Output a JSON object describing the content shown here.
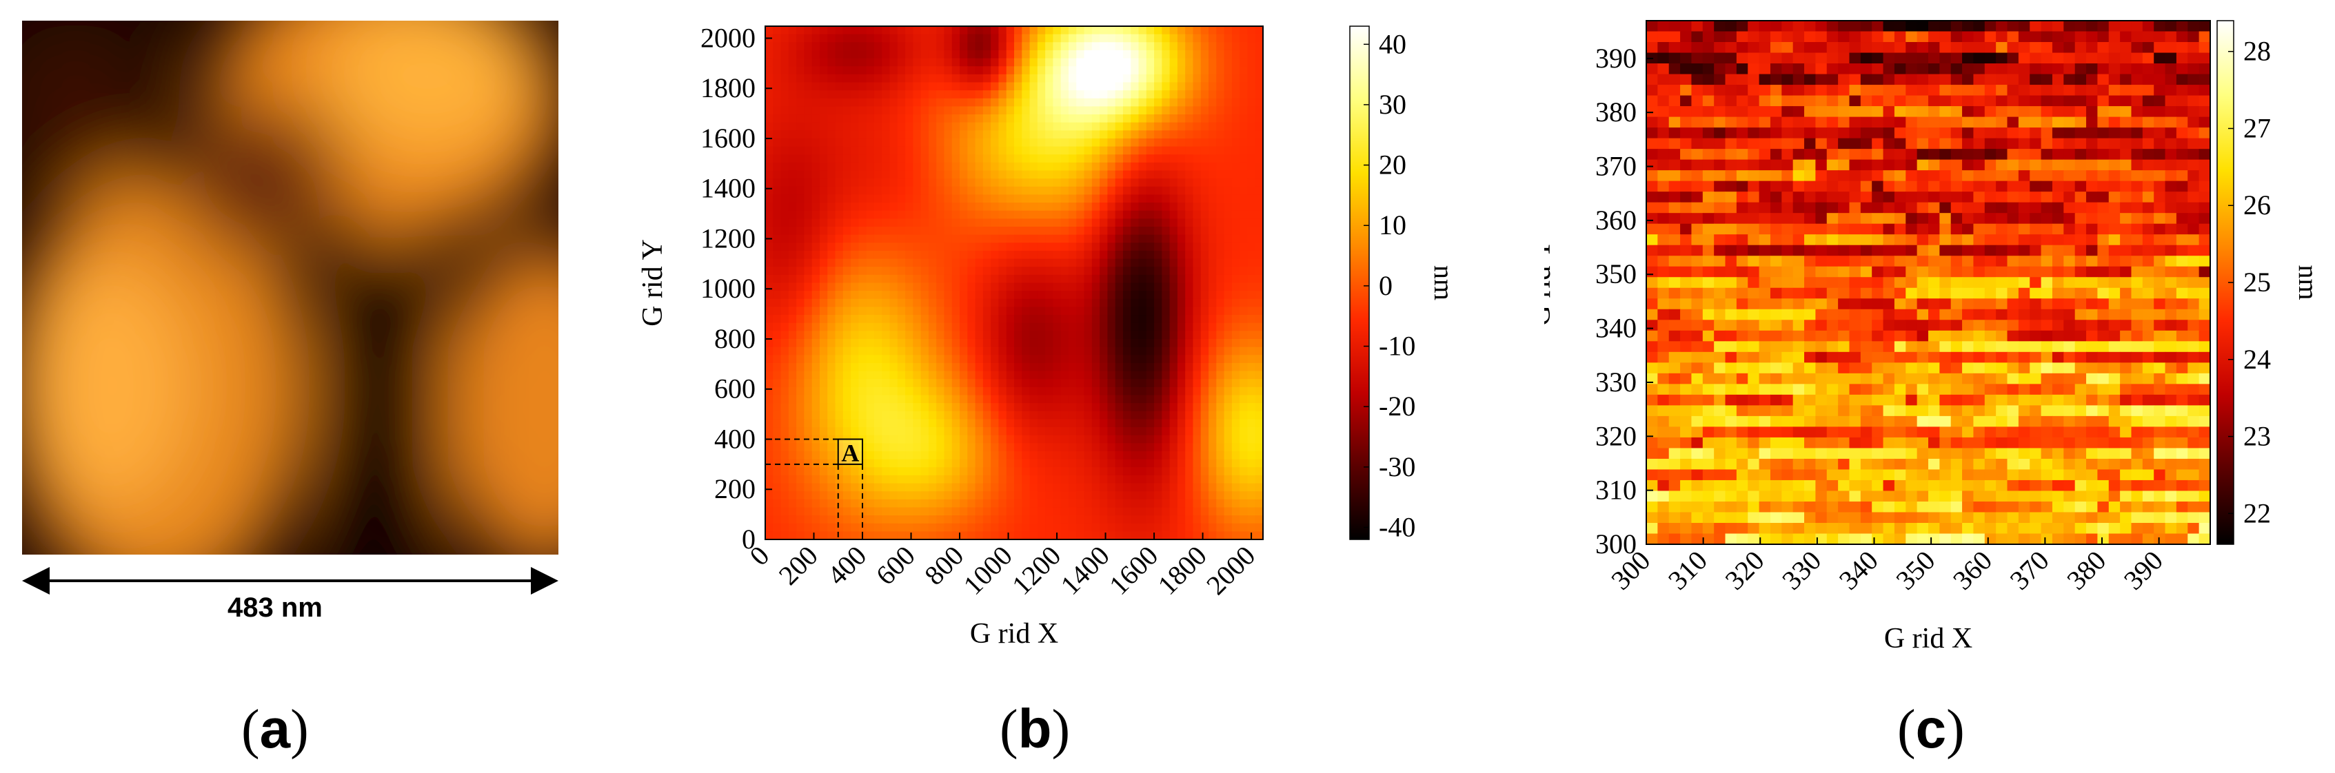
{
  "panels": {
    "a": {
      "label_letter": "a",
      "scale_bar_text": "483 nm"
    },
    "b": {
      "label_letter": "b",
      "region_label": "A"
    },
    "c": {
      "label_letter": "c"
    }
  },
  "chart_data": [
    {
      "type": "heatmap",
      "panel": "b",
      "xlabel": "G rid X",
      "ylabel": "G rid Y",
      "colorbar_label": "nm",
      "xlim": [
        0,
        2048
      ],
      "ylim": [
        0,
        2048
      ],
      "x_ticks": [
        0,
        200,
        400,
        600,
        800,
        1000,
        1200,
        1400,
        1600,
        1800,
        2000
      ],
      "y_ticks": [
        0,
        200,
        400,
        600,
        800,
        1000,
        1200,
        1400,
        1600,
        1800,
        2000
      ],
      "colorbar_range": [
        -42,
        43
      ],
      "colorbar_ticks": [
        -40,
        -30,
        -20,
        -10,
        0,
        10,
        20,
        30,
        40
      ],
      "colormap": [
        "#000000",
        "#5a0000",
        "#c00000",
        "#ff2a00",
        "#ff8a00",
        "#ffe000",
        "#ffff80",
        "#ffffff"
      ],
      "selected_region": {
        "x": [
          300,
          400
        ],
        "y": [
          300,
          400
        ]
      },
      "features": [
        {
          "x": 1430,
          "y": 1900,
          "value": 40,
          "sx": 300,
          "sy": 250
        },
        {
          "x": 1150,
          "y": 1600,
          "value": 20,
          "sx": 420,
          "sy": 380
        },
        {
          "x": 400,
          "y": 650,
          "value": 18,
          "sx": 320,
          "sy": 520
        },
        {
          "x": 700,
          "y": 350,
          "value": 12,
          "sx": 300,
          "sy": 300
        },
        {
          "x": 2000,
          "y": 420,
          "value": 20,
          "sx": 230,
          "sy": 380
        },
        {
          "x": 450,
          "y": 1450,
          "value": -12,
          "sx": 300,
          "sy": 350
        },
        {
          "x": 380,
          "y": 1950,
          "value": -20,
          "sx": 280,
          "sy": 180
        },
        {
          "x": 1550,
          "y": 900,
          "value": -38,
          "sx": 200,
          "sy": 620
        },
        {
          "x": 1100,
          "y": 800,
          "value": -22,
          "sx": 220,
          "sy": 400
        },
        {
          "x": 900,
          "y": 1950,
          "value": -32,
          "sx": 150,
          "sy": 200
        },
        {
          "x": 100,
          "y": 1200,
          "value": -18,
          "sx": 200,
          "sy": 500
        }
      ]
    },
    {
      "type": "heatmap",
      "panel": "c",
      "xlabel": "G rid X",
      "ylabel": "G rid Y",
      "colorbar_label": "nm",
      "xlim": [
        300,
        399
      ],
      "ylim": [
        300,
        397
      ],
      "x_ticks": [
        300,
        310,
        320,
        330,
        340,
        350,
        360,
        370,
        380,
        390
      ],
      "y_ticks": [
        300,
        310,
        320,
        330,
        340,
        350,
        360,
        370,
        380,
        390
      ],
      "colorbar_range": [
        21.6,
        28.4
      ],
      "colorbar_ticks": [
        22,
        23,
        24,
        25,
        26,
        27,
        28
      ],
      "colormap": [
        "#000000",
        "#5a0000",
        "#c00000",
        "#ff2a00",
        "#ff8a00",
        "#ffe000",
        "#ffff80",
        "#ffffff"
      ]
    }
  ]
}
